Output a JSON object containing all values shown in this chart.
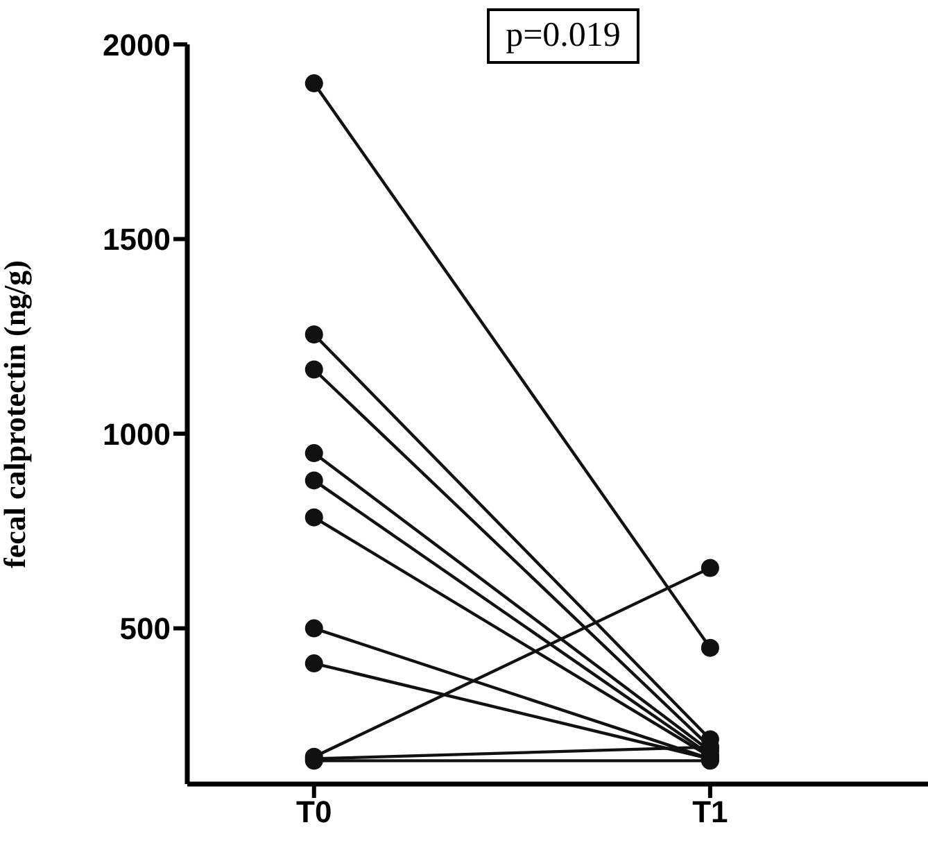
{
  "chart_data": {
    "type": "line",
    "categories": [
      "T0",
      "T1"
    ],
    "ylabel": "fecal calprotectin (ng/g)",
    "annotations": [
      "p=0.019"
    ],
    "ylim": [
      100,
      2000
    ],
    "yticks": [
      500,
      1000,
      1500,
      2000
    ],
    "marker": "circle",
    "series": [
      {
        "color": "#111111",
        "values": [
          1900,
          450
        ]
      },
      {
        "color": "#111111",
        "values": [
          1255,
          215
        ]
      },
      {
        "color": "#111111",
        "values": [
          1165,
          195
        ]
      },
      {
        "color": "#111111",
        "values": [
          950,
          185
        ]
      },
      {
        "color": "#111111",
        "values": [
          880,
          175
        ]
      },
      {
        "color": "#111111",
        "values": [
          785,
          170
        ]
      },
      {
        "color": "#111111",
        "values": [
          500,
          165
        ]
      },
      {
        "color": "#111111",
        "values": [
          410,
          165
        ]
      },
      {
        "color": "#111111",
        "values": [
          170,
          655
        ]
      },
      {
        "color": "#111111",
        "values": [
          165,
          195
        ]
      },
      {
        "color": "#111111",
        "values": [
          160,
          160
        ]
      }
    ]
  }
}
